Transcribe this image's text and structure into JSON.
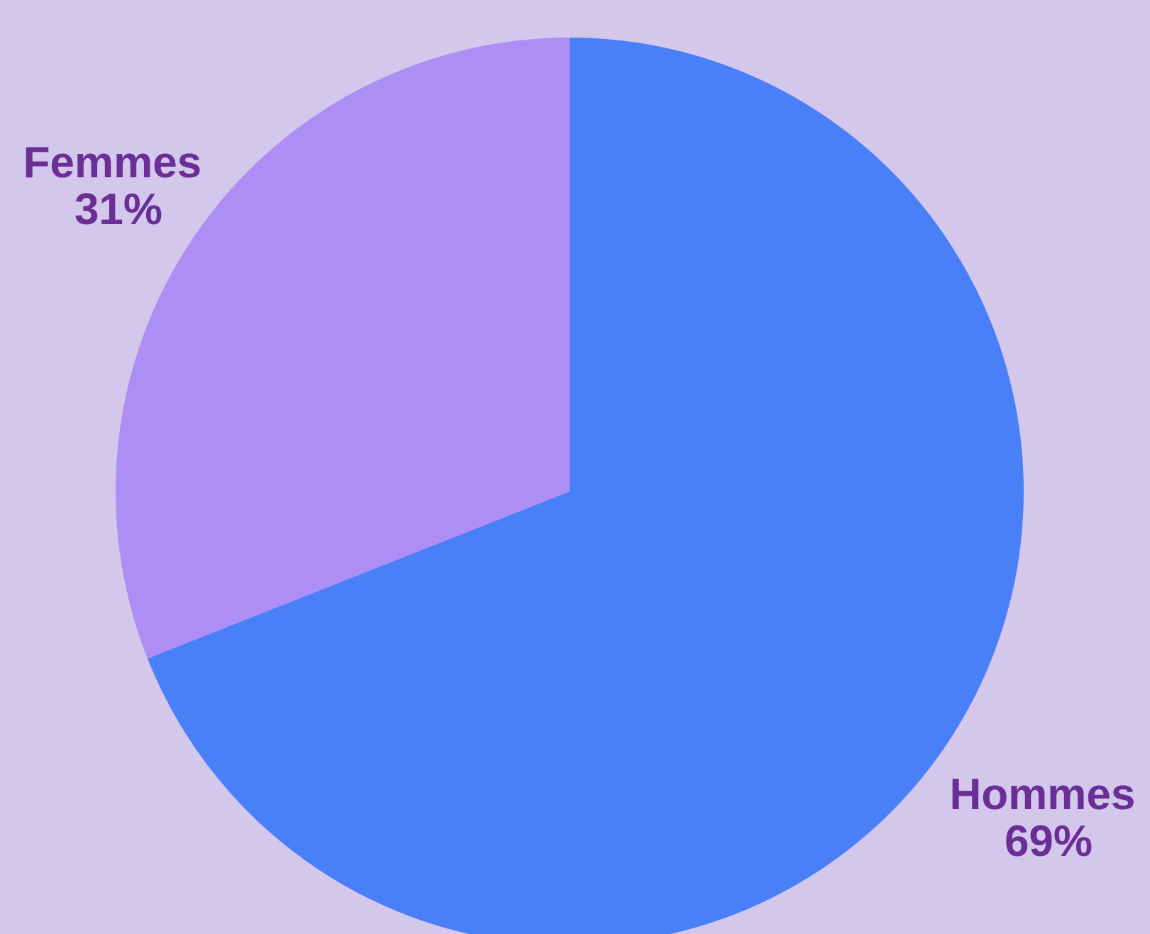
{
  "colors": {
    "background": "#d3c7ec",
    "label_text": "#6a2e96"
  },
  "chart_data": {
    "type": "pie",
    "start_angle_deg": 0,
    "direction": "clockwise",
    "slices": [
      {
        "label": "Hommes",
        "value": 69,
        "display_value": "69%",
        "color": "#4a80f7"
      },
      {
        "label": "Femmes",
        "value": 31,
        "display_value": "31%",
        "color": "#ad8ef5"
      }
    ]
  }
}
